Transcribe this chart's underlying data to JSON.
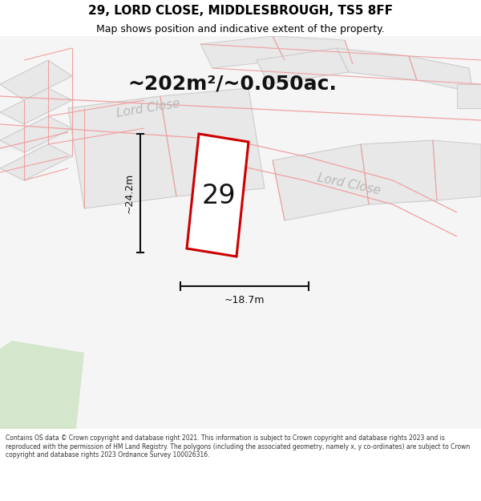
{
  "title_line1": "29, LORD CLOSE, MIDDLESBROUGH, TS5 8FF",
  "title_line2": "Map shows position and indicative extent of the property.",
  "area_text": "~202m²/~0.050ac.",
  "number_label": "29",
  "dim_vertical": "~24.2m",
  "dim_horizontal": "~18.7m",
  "road_label_1": "Lord Close",
  "road_label_2": "Lord Close",
  "copyright_text": "Contains OS data © Crown copyright and database right 2021. This information is subject to Crown copyright and database rights 2023 and is reproduced with the permission of HM Land Registry. The polygons (including the associated geometry, namely x, y co-ordinates) are subject to Crown copyright and database rights 2023 Ordnance Survey 100026316.",
  "bg_color": "#ffffff",
  "map_bg": "#f7f7f7",
  "block_fill": "#e8e8e8",
  "block_edge": "#cccccc",
  "road_line_color": "#f0a0a0",
  "plot_edge_color": "#cc0000",
  "plot_fill": "#ffffff",
  "dim_color": "#111111",
  "road_label_color": "#b8b8b8",
  "green_fill": "#d4e6cc",
  "title_fontsize": 11,
  "subtitle_fontsize": 9,
  "area_fontsize": 18,
  "dim_fontsize": 9,
  "road_label_fontsize": 11,
  "number_fontsize": 24
}
